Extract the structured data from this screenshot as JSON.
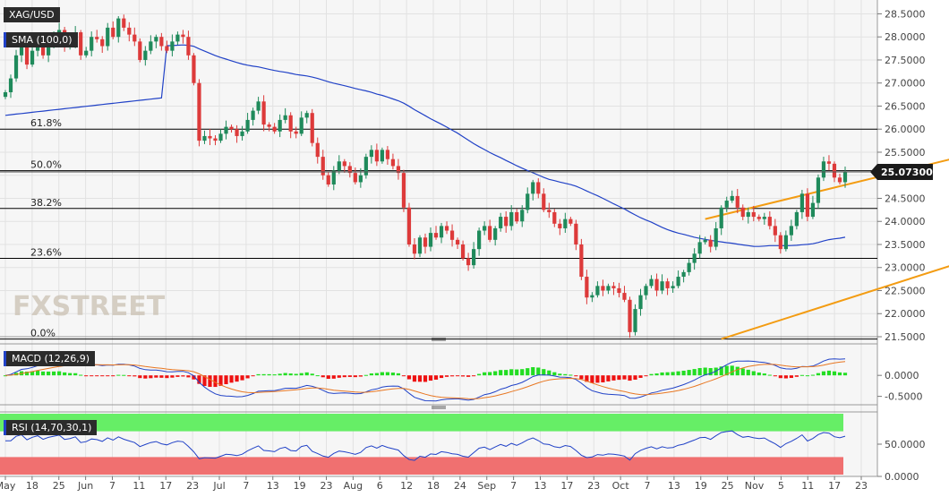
{
  "colors": {
    "bull": "#1f8a5b",
    "bear": "#dd3a3a",
    "sma": "#2142c7",
    "channel": "#f39c12",
    "fib": "#000000",
    "macd_line": "#2142c7",
    "signal_line": "#e87722",
    "hist_pos": "#22dd22",
    "hist_neg": "#ee1111",
    "rsi_line": "#2142c7",
    "rsi_overbought_band": "#66ee66",
    "rsi_oversold_band": "#f07070",
    "price_badge": "#1a1a1a"
  },
  "watermark": "FXSTREET",
  "chart_data": [
    {
      "type": "candlestick",
      "title": "XAG/USD",
      "indicator_label": "SMA (100,0)",
      "current_price": "25.07300",
      "ylim": [
        21.5,
        28.8
      ],
      "yticks": [
        "28.5000",
        "28.0000",
        "27.5000",
        "27.0000",
        "26.5000",
        "26.0000",
        "25.5000",
        "25.0000",
        "24.5000",
        "24.0000",
        "23.5000",
        "23.0000",
        "22.5000",
        "22.0000",
        "21.5000"
      ],
      "xticks": [
        "May",
        "18",
        "25",
        "Jun",
        "7",
        "11",
        "17",
        "23",
        "Jul",
        "7",
        "13",
        "19",
        "23",
        "Aug",
        "6",
        "12",
        "18",
        "24",
        "Sep",
        "7",
        "13",
        "17",
        "23",
        "Oct",
        "7",
        "13",
        "19",
        "25",
        "Nov",
        "5",
        "11",
        "17",
        "23"
      ],
      "fib_levels": [
        {
          "label": "61.8%",
          "value": 26.0
        },
        {
          "label": "50.0%",
          "value": 25.1
        },
        {
          "label": "38.2%",
          "value": 24.28
        },
        {
          "label": "23.6%",
          "value": 23.2
        },
        {
          "label": "0.0%",
          "value": 21.45
        }
      ],
      "channel": {
        "upper": [
          [
            24.05,
            130
          ],
          [
            25.9,
            195
          ]
        ],
        "lower": [
          [
            21.45,
            133
          ],
          [
            23.95,
            200
          ]
        ]
      },
      "close": [
        26.8,
        27.1,
        27.6,
        27.8,
        27.4,
        27.7,
        27.9,
        27.6,
        27.85,
        28.0,
        28.15,
        27.8,
        27.9,
        28.1,
        27.6,
        27.7,
        28.0,
        27.95,
        27.8,
        28.2,
        28.0,
        28.4,
        28.2,
        28.05,
        27.9,
        27.5,
        27.7,
        27.9,
        28.0,
        27.8,
        27.7,
        27.9,
        28.05,
        28.0,
        27.6,
        27.0,
        25.75,
        25.85,
        25.8,
        25.75,
        25.9,
        26.05,
        26.0,
        25.85,
        25.95,
        26.2,
        26.4,
        26.6,
        26.1,
        26.05,
        25.95,
        26.2,
        26.3,
        25.95,
        25.9,
        26.25,
        26.35,
        25.7,
        25.4,
        25.0,
        24.8,
        25.1,
        25.3,
        25.2,
        25.05,
        24.85,
        25.0,
        25.4,
        25.55,
        25.3,
        25.55,
        25.35,
        25.2,
        25.05,
        24.3,
        23.5,
        23.3,
        23.65,
        23.45,
        23.75,
        23.65,
        23.9,
        23.8,
        23.6,
        23.5,
        23.2,
        23.05,
        23.4,
        23.8,
        23.9,
        23.6,
        23.85,
        24.1,
        23.9,
        24.2,
        24.0,
        24.25,
        24.6,
        24.85,
        24.6,
        24.25,
        24.2,
        23.95,
        23.85,
        24.05,
        23.95,
        23.5,
        22.8,
        22.35,
        22.4,
        22.6,
        22.5,
        22.6,
        22.55,
        22.45,
        22.3,
        21.6,
        22.1,
        22.4,
        22.6,
        22.75,
        22.5,
        22.7,
        22.55,
        22.6,
        22.8,
        22.9,
        23.1,
        23.3,
        23.55,
        23.6,
        23.45,
        23.85,
        24.3,
        24.45,
        24.55,
        24.3,
        24.1,
        24.2,
        24.1,
        24.05,
        24.1,
        23.9,
        23.7,
        23.4,
        23.7,
        23.9,
        24.2,
        24.6,
        24.1,
        24.4,
        24.95,
        25.3,
        25.25,
        24.95,
        24.85,
        25.07
      ]
    },
    {
      "type": "line",
      "title": "MACD (12,26,9)",
      "ylim": [
        -0.7,
        0.75
      ],
      "yticks": [
        "0.0000",
        "-0.5000"
      ]
    },
    {
      "type": "line",
      "title": "RSI (14,70,30,1)",
      "ylim": [
        0,
        100
      ],
      "levels": [
        30,
        70
      ],
      "yticks": [
        "50.0000",
        "0.0000"
      ]
    }
  ]
}
